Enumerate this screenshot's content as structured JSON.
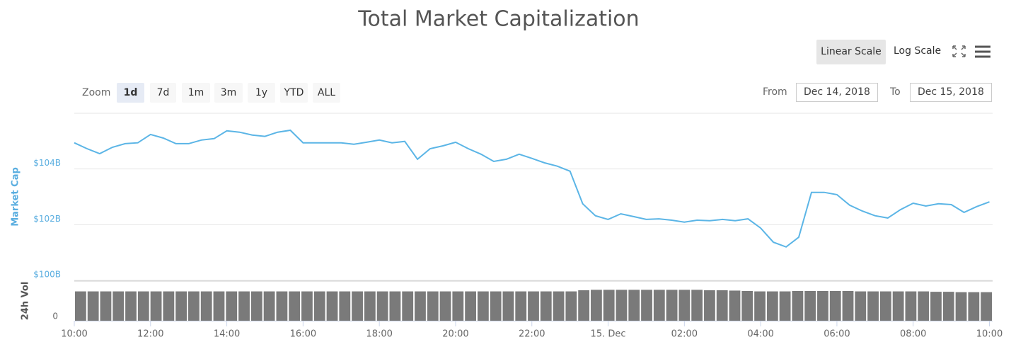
{
  "chart_data": {
    "type": "line",
    "title": "Total Market Capitalization",
    "y_label": "Market Cap",
    "color": "#5bb5e6",
    "x": [
      0,
      20,
      40,
      60,
      80,
      100,
      120,
      140,
      160,
      180,
      200,
      220,
      240,
      260,
      280,
      300,
      320,
      340,
      360,
      380,
      400,
      420,
      440,
      460,
      480,
      500,
      520,
      540,
      560,
      580,
      600,
      620,
      640,
      660,
      680,
      700,
      720,
      740,
      760,
      780,
      800,
      820,
      840,
      860,
      880,
      900,
      920,
      940,
      960,
      980,
      1000,
      1020,
      1040,
      1060,
      1080,
      1100,
      1120,
      1140,
      1160,
      1180,
      1200,
      1220,
      1240,
      1260,
      1280,
      1300,
      1320,
      1340,
      1360,
      1380,
      1400,
      1420,
      1440
    ],
    "values": [
      104.94,
      104.73,
      104.55,
      104.78,
      104.91,
      104.94,
      105.24,
      105.11,
      104.91,
      104.91,
      105.04,
      105.09,
      105.37,
      105.32,
      105.22,
      105.17,
      105.32,
      105.39,
      104.94,
      104.94,
      104.94,
      104.94,
      104.89,
      104.96,
      105.04,
      104.94,
      104.99,
      104.35,
      104.73,
      104.83,
      104.96,
      104.73,
      104.53,
      104.27,
      104.35,
      104.53,
      104.38,
      104.22,
      104.1,
      103.92,
      102.75,
      102.32,
      102.19,
      102.39,
      102.29,
      102.19,
      102.21,
      102.16,
      102.09,
      102.16,
      102.14,
      102.19,
      102.14,
      102.21,
      101.88,
      101.37,
      101.2,
      101.55,
      103.16,
      103.16,
      103.08,
      102.7,
      102.49,
      102.32,
      102.24,
      102.54,
      102.77,
      102.67,
      102.75,
      102.72,
      102.44,
      102.65,
      102.82
    ],
    "xlim": [
      0,
      1445
    ],
    "xticks": [
      {
        "value": 0,
        "label": "10:00"
      },
      {
        "value": 120,
        "label": "12:00"
      },
      {
        "value": 240,
        "label": "14:00"
      },
      {
        "value": 360,
        "label": "16:00"
      },
      {
        "value": 480,
        "label": "18:00"
      },
      {
        "value": 600,
        "label": "20:00"
      },
      {
        "value": 720,
        "label": "22:00"
      },
      {
        "value": 840,
        "label": "15. Dec"
      },
      {
        "value": 960,
        "label": "02:00"
      },
      {
        "value": 1080,
        "label": "04:00"
      },
      {
        "value": 1200,
        "label": "06:00"
      },
      {
        "value": 1320,
        "label": "08:00"
      },
      {
        "value": 1440,
        "label": "10:00"
      }
    ],
    "ylim": [
      100,
      106
    ],
    "yticks": [
      {
        "value": 100,
        "label": "$100B"
      },
      {
        "value": 102,
        "label": "$102B"
      },
      {
        "value": 104,
        "label": "$104B"
      }
    ],
    "grid": true,
    "volume": {
      "label": "24h Vol",
      "color": "#7a7a7a",
      "ylim": [
        0,
        100
      ],
      "yticks": [
        0
      ],
      "values": [
        74,
        74,
        74,
        74,
        74,
        74,
        74,
        74,
        74,
        74,
        74,
        74,
        74,
        74,
        74,
        74,
        74,
        74,
        74,
        74,
        74,
        74,
        74,
        74,
        74,
        74,
        74,
        74,
        74,
        74,
        74,
        74,
        74,
        74,
        74,
        74,
        74,
        74,
        74,
        74,
        77,
        78,
        78,
        78,
        78,
        78,
        78,
        78,
        78,
        78,
        77,
        77,
        76,
        75,
        74,
        74,
        74,
        75,
        75,
        75,
        75,
        75,
        74,
        74,
        74,
        74,
        74,
        74,
        73,
        73,
        72,
        72,
        72
      ]
    }
  },
  "controls": {
    "zoom_label": "Zoom",
    "zoom": [
      "1d",
      "7d",
      "1m",
      "3m",
      "1y",
      "YTD",
      "ALL"
    ],
    "linear": "Linear Scale",
    "log": "Log Scale",
    "from_label": "From",
    "from": "Dec 14, 2018",
    "to_label": "To",
    "to": "Dec 15, 2018"
  }
}
